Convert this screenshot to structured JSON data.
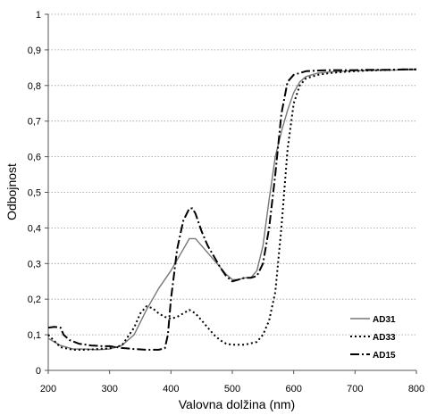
{
  "chart_data": {
    "type": "line",
    "xlabel": "Valovna dolžina (nm)",
    "ylabel": "Odbojnost",
    "xlim": [
      200,
      800
    ],
    "ylim": [
      0,
      1
    ],
    "xticks": [
      200,
      300,
      400,
      500,
      600,
      700,
      800
    ],
    "yticks": [
      0,
      0.1,
      0.2,
      0.3,
      0.4,
      0.5,
      0.6,
      0.7,
      0.8,
      0.9,
      1
    ],
    "ytick_labels": [
      "0",
      "0,1",
      "0,2",
      "0,3",
      "0,4",
      "0,5",
      "0,6",
      "0,7",
      "0,8",
      "0,9",
      "1"
    ],
    "grid": "horizontal dotted",
    "legend_position": "bottom-right",
    "series": [
      {
        "name": "AD31",
        "style": "solid",
        "color": "#777777",
        "x": [
          200,
          220,
          240,
          260,
          280,
          300,
          320,
          340,
          360,
          380,
          400,
          410,
          420,
          430,
          440,
          450,
          460,
          470,
          480,
          490,
          500,
          510,
          520,
          530,
          540,
          550,
          560,
          570,
          580,
          590,
          600,
          610,
          620,
          640,
          660,
          680,
          700,
          720,
          740,
          760,
          780,
          800
        ],
        "y": [
          0.09,
          0.07,
          0.06,
          0.06,
          0.058,
          0.06,
          0.07,
          0.1,
          0.17,
          0.23,
          0.28,
          0.31,
          0.34,
          0.37,
          0.37,
          0.35,
          0.33,
          0.31,
          0.29,
          0.27,
          0.255,
          0.255,
          0.26,
          0.26,
          0.28,
          0.35,
          0.48,
          0.6,
          0.67,
          0.73,
          0.78,
          0.81,
          0.825,
          0.835,
          0.838,
          0.84,
          0.842,
          0.842,
          0.843,
          0.843,
          0.844,
          0.845
        ]
      },
      {
        "name": "AD33",
        "style": "dotted",
        "color": "#000000",
        "x": [
          200,
          220,
          240,
          260,
          280,
          300,
          320,
          340,
          350,
          360,
          370,
          380,
          390,
          400,
          410,
          420,
          430,
          440,
          450,
          460,
          470,
          480,
          490,
          500,
          520,
          540,
          550,
          560,
          570,
          580,
          590,
          600,
          610,
          620,
          640,
          660,
          680,
          700,
          720,
          740,
          760,
          780,
          800
        ],
        "y": [
          0.1,
          0.065,
          0.058,
          0.058,
          0.06,
          0.062,
          0.07,
          0.12,
          0.16,
          0.18,
          0.175,
          0.16,
          0.15,
          0.145,
          0.15,
          0.16,
          0.17,
          0.16,
          0.14,
          0.12,
          0.1,
          0.085,
          0.075,
          0.072,
          0.072,
          0.08,
          0.1,
          0.14,
          0.22,
          0.4,
          0.62,
          0.75,
          0.8,
          0.82,
          0.83,
          0.835,
          0.838,
          0.84,
          0.842,
          0.843,
          0.844,
          0.845,
          0.845
        ]
      },
      {
        "name": "AD15",
        "style": "dash-dot",
        "color": "#000000",
        "x": [
          200,
          210,
          220,
          225,
          235,
          250,
          270,
          290,
          300,
          320,
          340,
          360,
          380,
          390,
          395,
          400,
          405,
          410,
          420,
          430,
          435,
          440,
          450,
          460,
          470,
          480,
          490,
          500,
          510,
          520,
          530,
          540,
          550,
          560,
          570,
          580,
          590,
          600,
          620,
          640,
          660,
          680,
          700,
          720,
          740,
          760,
          780,
          800
        ],
        "y": [
          0.12,
          0.122,
          0.12,
          0.1,
          0.085,
          0.075,
          0.07,
          0.068,
          0.068,
          0.063,
          0.06,
          0.058,
          0.058,
          0.062,
          0.1,
          0.2,
          0.27,
          0.34,
          0.42,
          0.455,
          0.455,
          0.44,
          0.39,
          0.35,
          0.32,
          0.29,
          0.265,
          0.25,
          0.255,
          0.26,
          0.26,
          0.265,
          0.3,
          0.4,
          0.55,
          0.72,
          0.81,
          0.83,
          0.84,
          0.842,
          0.843,
          0.843,
          0.843,
          0.844,
          0.844,
          0.844,
          0.845,
          0.845
        ]
      }
    ]
  }
}
